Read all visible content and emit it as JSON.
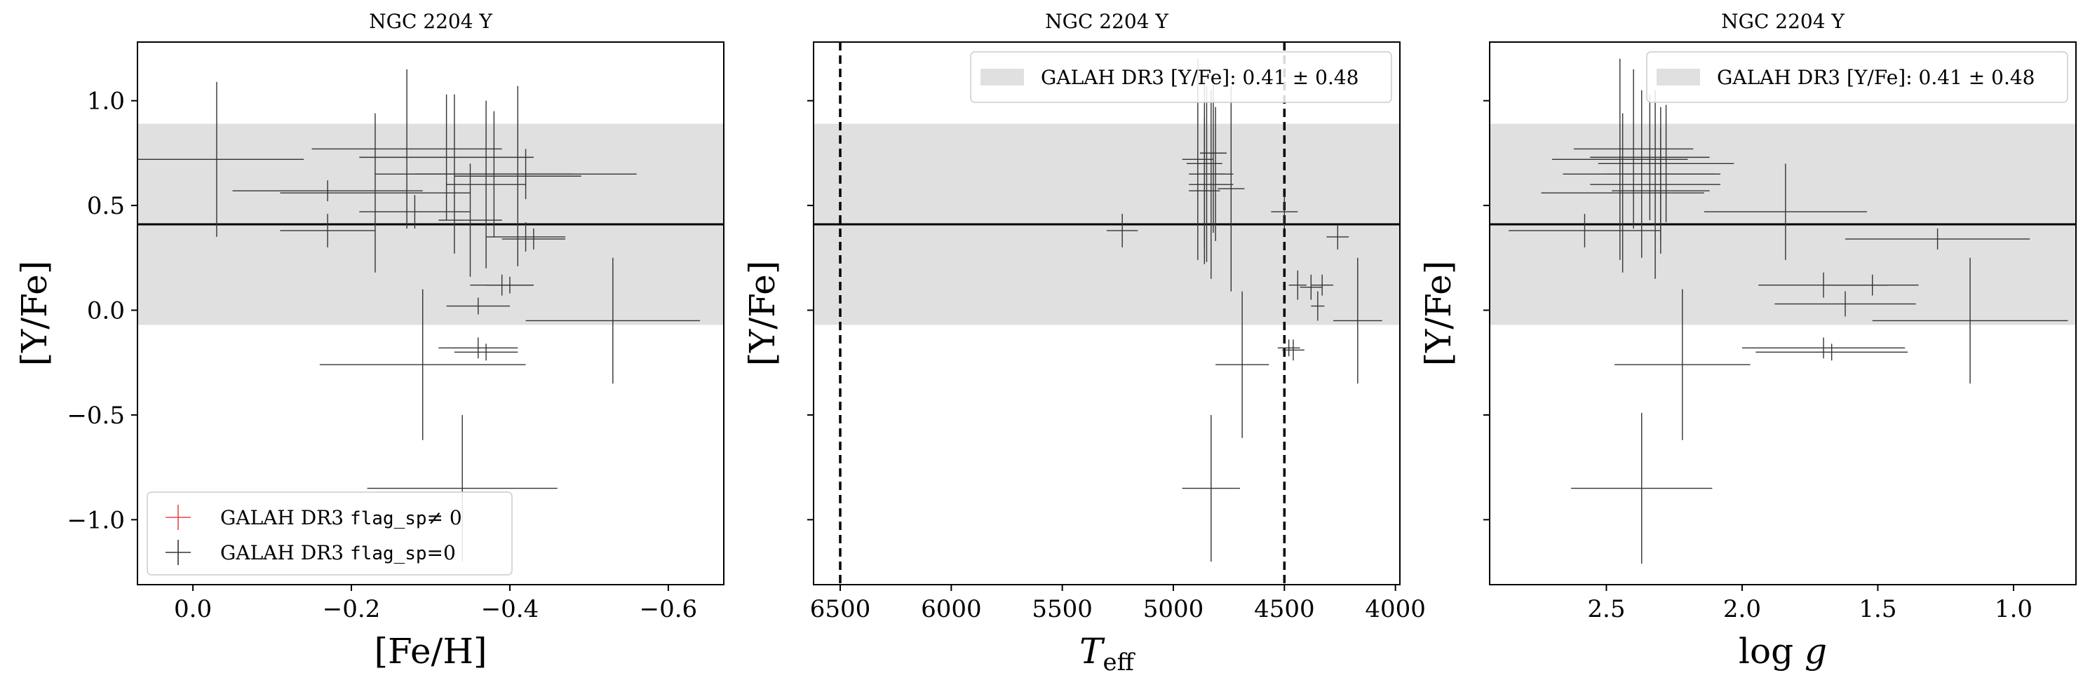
{
  "chart_data": [
    {
      "type": "scatter",
      "title": "NGC 2204 Y",
      "xlabel": "[Fe/H]",
      "ylabel": "[Y/Fe]",
      "xlim": [
        0.07,
        -0.67
      ],
      "ylim": [
        -1.31,
        1.28
      ],
      "xticks": [
        0.0,
        -0.2,
        -0.4,
        -0.6
      ],
      "xtick_labels": [
        "0.0",
        "−0.2",
        "−0.4",
        "−0.6"
      ],
      "yticks": [
        -1.0,
        -0.5,
        0.0,
        0.5,
        1.0
      ],
      "ytick_labels": [
        "−1.0",
        "−0.5",
        "0.0",
        "0.5",
        "1.0"
      ],
      "show_ytick_labels": true,
      "band": {
        "center": 0.41,
        "halfwidth": 0.48,
        "color": "#e0e0e0"
      },
      "hline": 0.41,
      "vlines": [],
      "grid": false,
      "legend": {
        "placement": "lower-left",
        "entries": [
          {
            "prefix": "GALAH DR3 ",
            "code": "flag_sp",
            "suffix": "≠ 0",
            "color": "#e8474f",
            "marker": "cross"
          },
          {
            "prefix": "GALAH DR3 ",
            "code": "flag_sp",
            "suffix": "=0",
            "color": "#333333",
            "marker": "cross"
          }
        ]
      },
      "points": [
        {
          "x": -0.03,
          "y": 0.72,
          "xerr": 0.11,
          "yerr": 0.37
        },
        {
          "x": -0.17,
          "y": 0.38,
          "xerr": 0.06,
          "yerr": 0.08
        },
        {
          "x": -0.17,
          "y": 0.57,
          "xerr": 0.12,
          "yerr": 0.05
        },
        {
          "x": -0.23,
          "y": 0.56,
          "xerr": 0.12,
          "yerr": 0.38
        },
        {
          "x": -0.27,
          "y": 0.77,
          "xerr": 0.12,
          "yerr": 0.38
        },
        {
          "x": -0.28,
          "y": 0.47,
          "xerr": 0.07,
          "yerr": 0.08
        },
        {
          "x": -0.32,
          "y": 0.73,
          "xerr": 0.11,
          "yerr": 0.3
        },
        {
          "x": -0.33,
          "y": 0.65,
          "xerr": 0.1,
          "yerr": 0.38
        },
        {
          "x": -0.35,
          "y": 0.43,
          "xerr": 0.04,
          "yerr": 0.27
        },
        {
          "x": -0.37,
          "y": 0.6,
          "xerr": 0.05,
          "yerr": 0.4
        },
        {
          "x": -0.38,
          "y": 0.65,
          "xerr": 0.1,
          "yerr": 0.3
        },
        {
          "x": -0.41,
          "y": 0.64,
          "xerr": 0.08,
          "yerr": 0.43
        },
        {
          "x": -0.42,
          "y": 0.65,
          "xerr": 0.14,
          "yerr": 0.12
        },
        {
          "x": -0.36,
          "y": 0.02,
          "xerr": 0.04,
          "yerr": 0.04
        },
        {
          "x": -0.39,
          "y": 0.12,
          "xerr": 0.04,
          "yerr": 0.05
        },
        {
          "x": -0.4,
          "y": 0.12,
          "xerr": 0.03,
          "yerr": 0.04
        },
        {
          "x": -0.42,
          "y": 0.35,
          "xerr": 0.05,
          "yerr": 0.07
        },
        {
          "x": -0.43,
          "y": 0.34,
          "xerr": 0.04,
          "yerr": 0.05
        },
        {
          "x": -0.53,
          "y": -0.05,
          "xerr": 0.11,
          "yerr": 0.3
        },
        {
          "x": -0.36,
          "y": -0.18,
          "xerr": 0.05,
          "yerr": 0.05
        },
        {
          "x": -0.37,
          "y": -0.2,
          "xerr": 0.04,
          "yerr": 0.04
        },
        {
          "x": -0.29,
          "y": -0.26,
          "xerr": 0.13,
          "yerr": 0.36
        },
        {
          "x": -0.34,
          "y": -0.85,
          "xerr": 0.12,
          "yerr": 0.35
        }
      ]
    },
    {
      "type": "scatter",
      "title": "NGC 2204 Y",
      "xlabel_main": "T",
      "xlabel_sub": "eff",
      "ylabel": "[Y/Fe]",
      "xlim": [
        6620,
        3980
      ],
      "ylim": [
        -1.31,
        1.28
      ],
      "xticks": [
        6500,
        6000,
        5500,
        5000,
        4500,
        4000
      ],
      "xtick_labels": [
        "6500",
        "6000",
        "5500",
        "5000",
        "4500",
        "4000"
      ],
      "yticks": [
        -1.0,
        -0.5,
        0.0,
        0.5,
        1.0
      ],
      "show_ytick_labels": false,
      "band": {
        "center": 0.41,
        "halfwidth": 0.48,
        "color": "#e0e0e0"
      },
      "hline": 0.41,
      "vlines": [
        6500,
        4500
      ],
      "grid": false,
      "legend": {
        "placement": "top-right",
        "entries": [
          {
            "text": "GALAH DR3 [Y/Fe]: 0.41 ± 0.48",
            "swatch": "band"
          }
        ]
      },
      "points": [
        {
          "x": 5230,
          "y": 0.38,
          "xerr": 70,
          "yerr": 0.08
        },
        {
          "x": 4890,
          "y": 0.72,
          "xerr": 70,
          "yerr": 0.48
        },
        {
          "x": 4860,
          "y": 0.7,
          "xerr": 80,
          "yerr": 0.4
        },
        {
          "x": 4850,
          "y": 0.65,
          "xerr": 80,
          "yerr": 0.42
        },
        {
          "x": 4830,
          "y": 0.6,
          "xerr": 100,
          "yerr": 0.45
        },
        {
          "x": 4820,
          "y": 0.75,
          "xerr": 60,
          "yerr": 0.38
        },
        {
          "x": 4860,
          "y": 0.57,
          "xerr": 70,
          "yerr": 0.35
        },
        {
          "x": 4810,
          "y": 0.65,
          "xerr": 80,
          "yerr": 0.32
        },
        {
          "x": 4740,
          "y": 0.58,
          "xerr": 60,
          "yerr": 0.49
        },
        {
          "x": 4500,
          "y": 0.47,
          "xerr": 60,
          "yerr": 0.08
        },
        {
          "x": 4440,
          "y": 0.12,
          "xerr": 40,
          "yerr": 0.07
        },
        {
          "x": 4380,
          "y": 0.11,
          "xerr": 50,
          "yerr": 0.06
        },
        {
          "x": 4330,
          "y": 0.12,
          "xerr": 50,
          "yerr": 0.05
        },
        {
          "x": 4350,
          "y": 0.02,
          "xerr": 30,
          "yerr": 0.07
        },
        {
          "x": 4260,
          "y": 0.35,
          "xerr": 50,
          "yerr": 0.06
        },
        {
          "x": 4170,
          "y": -0.05,
          "xerr": 110,
          "yerr": 0.3
        },
        {
          "x": 4480,
          "y": -0.18,
          "xerr": 50,
          "yerr": 0.04
        },
        {
          "x": 4460,
          "y": -0.19,
          "xerr": 50,
          "yerr": 0.05
        },
        {
          "x": 4690,
          "y": -0.26,
          "xerr": 120,
          "yerr": 0.35
        },
        {
          "x": 4830,
          "y": -0.85,
          "xerr": 130,
          "yerr": 0.35
        }
      ]
    },
    {
      "type": "scatter",
      "title": "NGC 2204 Y",
      "xlabel": "log g",
      "ylabel": "[Y/Fe]",
      "xlim": [
        2.93,
        0.77
      ],
      "ylim": [
        -1.31,
        1.28
      ],
      "xticks": [
        2.5,
        2.0,
        1.5,
        1.0
      ],
      "xtick_labels": [
        "2.5",
        "2.0",
        "1.5",
        "1.0"
      ],
      "yticks": [
        -1.0,
        -0.5,
        0.0,
        0.5,
        1.0
      ],
      "show_ytick_labels": false,
      "band": {
        "center": 0.41,
        "halfwidth": 0.48,
        "color": "#e0e0e0"
      },
      "hline": 0.41,
      "vlines": [],
      "grid": false,
      "legend": {
        "placement": "top-right",
        "entries": [
          {
            "text": "GALAH DR3 [Y/Fe]: 0.41 ± 0.48",
            "swatch": "band"
          }
        ]
      },
      "points": [
        {
          "x": 2.58,
          "y": 0.38,
          "xerr": 0.28,
          "yerr": 0.08
        },
        {
          "x": 2.45,
          "y": 0.72,
          "xerr": 0.25,
          "yerr": 0.48
        },
        {
          "x": 2.44,
          "y": 0.56,
          "xerr": 0.3,
          "yerr": 0.38
        },
        {
          "x": 2.4,
          "y": 0.77,
          "xerr": 0.22,
          "yerr": 0.38
        },
        {
          "x": 2.37,
          "y": 0.65,
          "xerr": 0.29,
          "yerr": 0.4
        },
        {
          "x": 2.34,
          "y": 0.73,
          "xerr": 0.22,
          "yerr": 0.3
        },
        {
          "x": 2.32,
          "y": 0.6,
          "xerr": 0.24,
          "yerr": 0.45
        },
        {
          "x": 2.3,
          "y": 0.65,
          "xerr": 0.2,
          "yerr": 0.32
        },
        {
          "x": 2.28,
          "y": 0.7,
          "xerr": 0.25,
          "yerr": 0.28
        },
        {
          "x": 2.3,
          "y": 0.57,
          "xerr": 0.18,
          "yerr": 0.3
        },
        {
          "x": 1.84,
          "y": 0.47,
          "xerr": 0.3,
          "yerr": 0.23
        },
        {
          "x": 1.28,
          "y": 0.34,
          "xerr": 0.34,
          "yerr": 0.05
        },
        {
          "x": 1.7,
          "y": 0.12,
          "xerr": 0.24,
          "yerr": 0.06
        },
        {
          "x": 1.52,
          "y": 0.12,
          "xerr": 0.17,
          "yerr": 0.05
        },
        {
          "x": 1.62,
          "y": 0.03,
          "xerr": 0.26,
          "yerr": 0.06
        },
        {
          "x": 1.16,
          "y": -0.05,
          "xerr": 0.36,
          "yerr": 0.3
        },
        {
          "x": 1.7,
          "y": -0.18,
          "xerr": 0.3,
          "yerr": 0.05
        },
        {
          "x": 1.67,
          "y": -0.2,
          "xerr": 0.28,
          "yerr": 0.04
        },
        {
          "x": 2.22,
          "y": -0.26,
          "xerr": 0.25,
          "yerr": 0.36
        },
        {
          "x": 2.37,
          "y": -0.85,
          "xerr": 0.26,
          "yerr": 0.36
        }
      ]
    }
  ]
}
